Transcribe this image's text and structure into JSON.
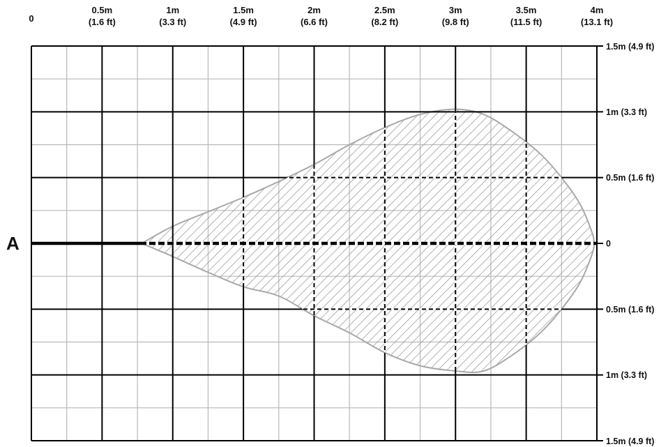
{
  "chart_data": {
    "type": "area",
    "title": "",
    "side_label": "A",
    "xlim": [
      0,
      4
    ],
    "ylim": [
      -1.5,
      1.5
    ],
    "x_ticks": [
      {
        "value": 0,
        "label": "0",
        "sublabel": ""
      },
      {
        "value": 0.5,
        "label": "0.5m",
        "sublabel": "(1.6 ft)"
      },
      {
        "value": 1,
        "label": "1m",
        "sublabel": "(3.3 ft)"
      },
      {
        "value": 1.5,
        "label": "1.5m",
        "sublabel": "(4.9 ft)"
      },
      {
        "value": 2,
        "label": "2m",
        "sublabel": "(6.6 ft)"
      },
      {
        "value": 2.5,
        "label": "2.5m",
        "sublabel": "(8.2 ft)"
      },
      {
        "value": 3,
        "label": "3m",
        "sublabel": "(9.8 ft)"
      },
      {
        "value": 3.5,
        "label": "3.5m",
        "sublabel": "(11.5 ft)"
      },
      {
        "value": 4,
        "label": "4m",
        "sublabel": "(13.1 ft)"
      }
    ],
    "y_ticks": [
      {
        "value": 1.5,
        "label": "1.5m (4.9 ft)"
      },
      {
        "value": 1,
        "label": "1m (3.3 ft)"
      },
      {
        "value": 0.5,
        "label": "0.5m (1.6 ft)"
      },
      {
        "value": 0,
        "label": "0"
      },
      {
        "value": -0.5,
        "label": "0.5m (1.6 ft)"
      },
      {
        "value": -1,
        "label": "1m (3.3 ft)"
      },
      {
        "value": -1.5,
        "label": "1.5m (4.9 ft)"
      }
    ],
    "major_grid_step": 0.5,
    "minor_grid_step": 0.25,
    "dashed_x_lines": [
      1.5,
      2,
      2.5,
      3,
      3.5
    ],
    "dashed_y_lines": [
      0.5,
      -0.5
    ],
    "coverage_boundary": [
      [
        0.78,
        0
      ],
      [
        1.0,
        0.13
      ],
      [
        1.25,
        0.24
      ],
      [
        1.5,
        0.35
      ],
      [
        1.75,
        0.47
      ],
      [
        2.0,
        0.6
      ],
      [
        2.25,
        0.75
      ],
      [
        2.5,
        0.88
      ],
      [
        2.75,
        0.98
      ],
      [
        3.0,
        1.02
      ],
      [
        3.2,
        0.98
      ],
      [
        3.4,
        0.85
      ],
      [
        3.6,
        0.68
      ],
      [
        3.75,
        0.5
      ],
      [
        3.88,
        0.3
      ],
      [
        3.96,
        0.1
      ],
      [
        3.98,
        0
      ],
      [
        3.96,
        -0.1
      ],
      [
        3.88,
        -0.3
      ],
      [
        3.75,
        -0.5
      ],
      [
        3.6,
        -0.68
      ],
      [
        3.4,
        -0.85
      ],
      [
        3.2,
        -0.97
      ],
      [
        3.0,
        -0.97
      ],
      [
        2.75,
        -0.93
      ],
      [
        2.5,
        -0.83
      ],
      [
        2.25,
        -0.68
      ],
      [
        2.0,
        -0.55
      ],
      [
        1.75,
        -0.4
      ],
      [
        1.5,
        -0.33
      ],
      [
        1.25,
        -0.22
      ],
      [
        1.0,
        -0.1
      ],
      [
        0.78,
        0
      ]
    ],
    "colors": {
      "major_grid": "#000000",
      "minor_grid": "#b8b8b8",
      "boundary": "#a8a8a8",
      "hatch": "#909090",
      "axis": "#000000"
    }
  }
}
